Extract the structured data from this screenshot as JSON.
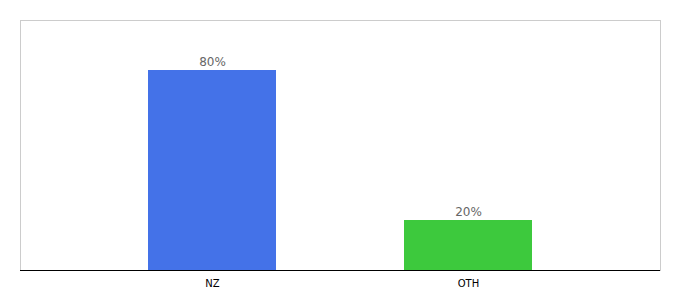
{
  "chart_data": {
    "type": "bar",
    "categories": [
      "NZ",
      "OTH"
    ],
    "values": [
      80,
      20
    ],
    "value_labels": [
      "80%",
      "20%"
    ],
    "colors": [
      "#4472e8",
      "#3dc93d"
    ],
    "ylim": [
      0,
      100
    ],
    "data_labels": true,
    "tick_labels": "x"
  }
}
